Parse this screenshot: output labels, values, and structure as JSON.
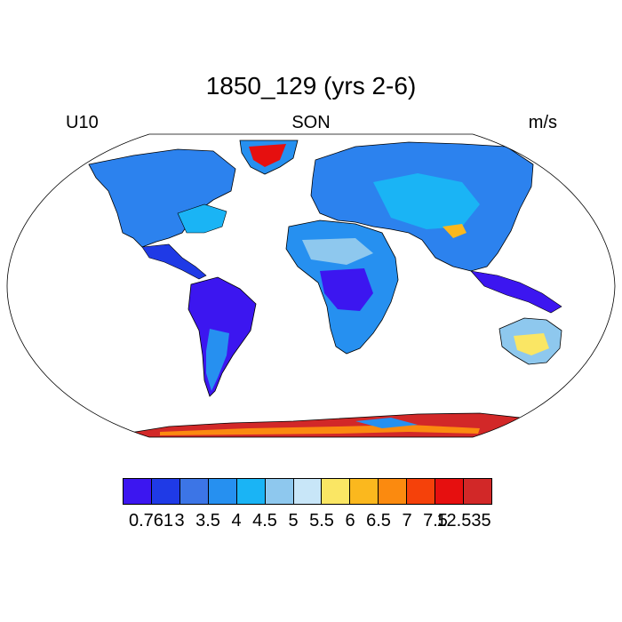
{
  "title": "1850_129 (yrs 2-6)",
  "left_label": "U10",
  "center_label": "SON",
  "right_label": "m/s",
  "colorbar": {
    "labels": [
      "0.761",
      "3",
      "3.5",
      "4",
      "4.5",
      "5",
      "5.5",
      "6",
      "6.5",
      "7",
      "7.5",
      "12.535"
    ],
    "colors": [
      "#3c16f0",
      "#1f3ae6",
      "#3c75e6",
      "#2690f0",
      "#1ab4f5",
      "#8ec8ee",
      "#c8e6f8",
      "#fae664",
      "#fbb81e",
      "#fb8a0f",
      "#f5410a",
      "#e60f0f",
      "#d22828"
    ]
  }
}
